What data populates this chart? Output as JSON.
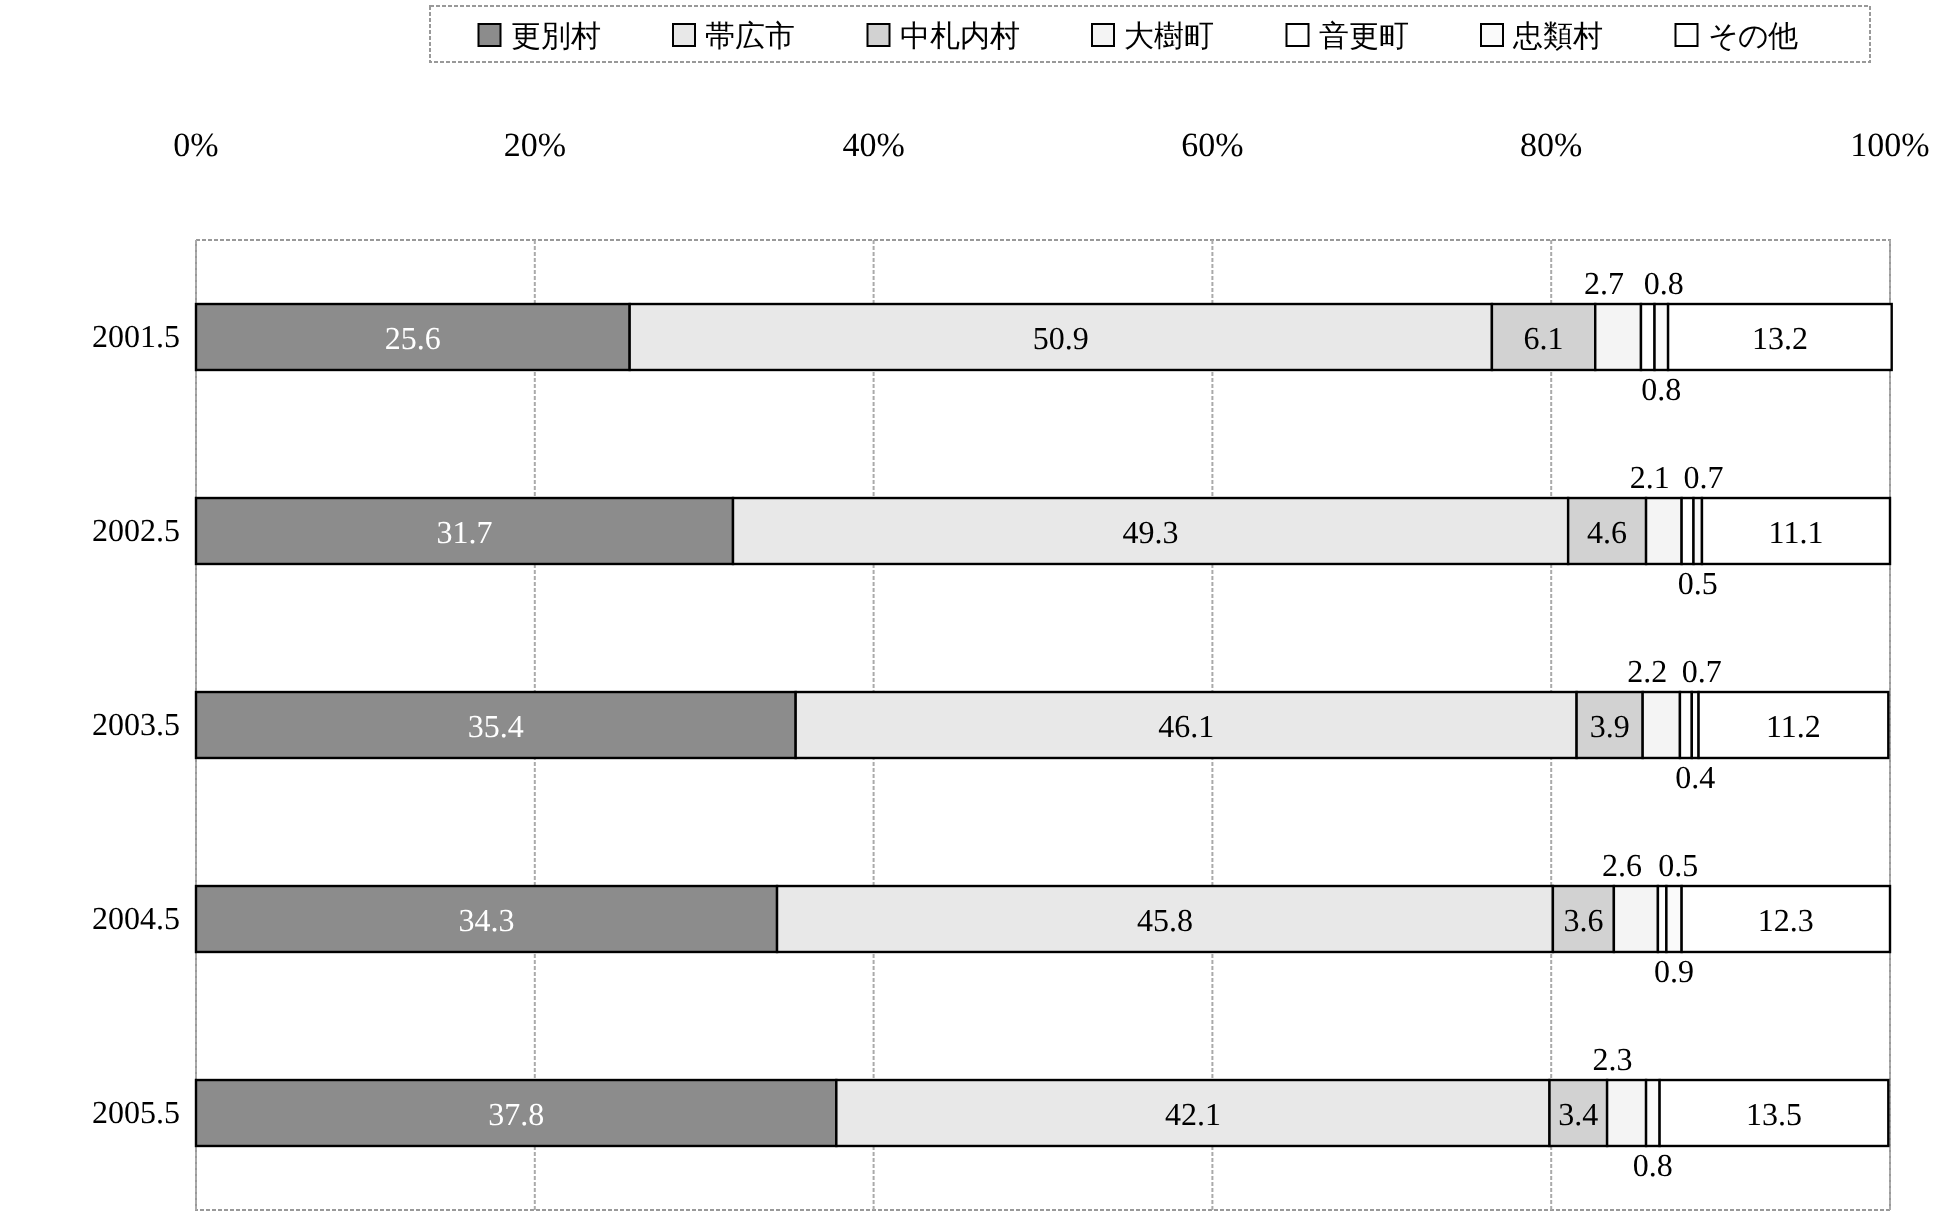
{
  "chart_data": {
    "type": "bar",
    "orientation": "horizontal",
    "stacked": true,
    "categories": [
      "2001.5",
      "2002.5",
      "2003.5",
      "2004.5",
      "2005.5"
    ],
    "series": [
      {
        "name": "更別村",
        "color": "#8c8c8c",
        "values": [
          25.6,
          31.7,
          35.4,
          34.3,
          37.8
        ]
      },
      {
        "name": "帯広市",
        "color": "#e8e8e8",
        "values": [
          50.9,
          49.3,
          46.1,
          45.8,
          42.1
        ]
      },
      {
        "name": "中札内村",
        "color": "#d2d2d2",
        "values": [
          6.1,
          4.6,
          3.9,
          3.6,
          3.4
        ]
      },
      {
        "name": "大樹町",
        "color": "#f4f4f4",
        "values": [
          2.7,
          2.1,
          2.2,
          2.6,
          2.3
        ]
      },
      {
        "name": "音更町",
        "color": "#ffffff",
        "values": [
          0.8,
          0.7,
          0.7,
          0.5,
          null
        ]
      },
      {
        "name": "忠類村",
        "color": "#fafafa",
        "values": [
          0.8,
          0.5,
          0.4,
          0.9,
          0.8
        ]
      },
      {
        "name": "その他",
        "color": "#ffffff",
        "values": [
          13.2,
          11.1,
          11.2,
          12.3,
          13.5
        ]
      }
    ],
    "xlim": [
      0,
      100
    ],
    "xticks": [
      {
        "value": 0,
        "label": "0%"
      },
      {
        "value": 20,
        "label": "20%"
      },
      {
        "value": 40,
        "label": "40%"
      },
      {
        "value": 60,
        "label": "60%"
      },
      {
        "value": 80,
        "label": "80%"
      },
      {
        "value": 100,
        "label": "100%"
      }
    ],
    "grid": "x",
    "legend": "top",
    "data_labels": true
  }
}
